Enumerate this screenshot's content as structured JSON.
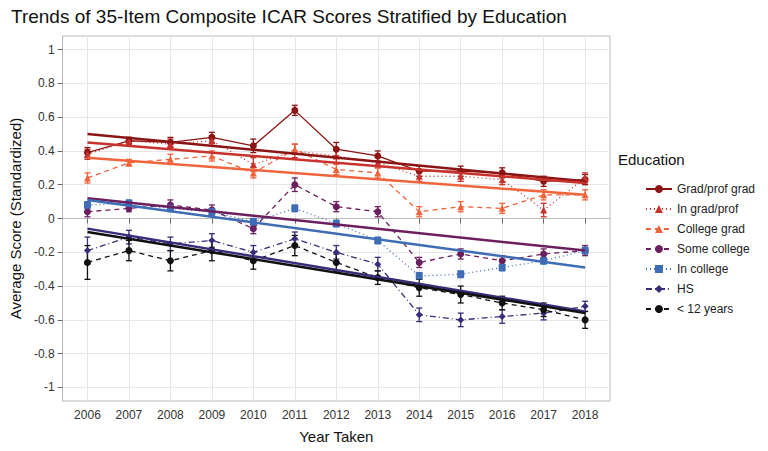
{
  "chart_data": {
    "type": "line",
    "title": "Trends of 35-Item Composite ICAR Scores Stratified by Education",
    "x_label": "Year Taken",
    "y_label": "Average Score (Standardized)",
    "legend_title": "Education",
    "legend": "right",
    "grid": true,
    "x": [
      2006,
      2007,
      2008,
      2009,
      2010,
      2011,
      2012,
      2013,
      2014,
      2015,
      2016,
      2017,
      2018
    ],
    "xlim": [
      2005.4,
      2018.6
    ],
    "xticks": [
      2006,
      2007,
      2008,
      2009,
      2010,
      2011,
      2012,
      2013,
      2014,
      2015,
      2016,
      2017,
      2018
    ],
    "ylim": [
      -1.08,
      1.08
    ],
    "yticks": [
      -1,
      -0.8,
      -0.6,
      -0.4,
      -0.2,
      0,
      0.2,
      0.4,
      0.6,
      0.8,
      1
    ],
    "series": [
      {
        "name": "Grad/prof grad",
        "color": "#8b1414",
        "line_style": "solid",
        "marker": "circle",
        "values": [
          0.39,
          0.46,
          0.45,
          0.48,
          0.43,
          0.64,
          0.41,
          0.37,
          0.28,
          0.28,
          0.27,
          0.22,
          0.23
        ],
        "errors": [
          0.03,
          0.02,
          0.03,
          0.03,
          0.04,
          0.03,
          0.04,
          0.03,
          0.03,
          0.03,
          0.03,
          0.03,
          0.03
        ],
        "trend": {
          "x": [
            2006,
            2018
          ],
          "values": [
            0.5,
            0.22
          ]
        }
      },
      {
        "name": "In grad/prof",
        "color": "#c8322d",
        "line_style": "dotted",
        "marker": "triangle",
        "values": [
          0.38,
          0.46,
          0.44,
          0.46,
          0.32,
          0.4,
          0.37,
          0.33,
          0.25,
          0.25,
          0.23,
          0.05,
          0.24
        ],
        "errors": [
          0.03,
          0.02,
          0.03,
          0.03,
          0.04,
          0.04,
          0.04,
          0.03,
          0.03,
          0.03,
          0.03,
          0.04,
          0.03
        ],
        "trend": {
          "x": [
            2006,
            2018
          ],
          "values": [
            0.45,
            0.21
          ]
        }
      },
      {
        "name": "College grad",
        "color": "#f0643c",
        "line_style": "dashed",
        "marker": "triangle",
        "values": [
          0.24,
          0.33,
          0.35,
          0.37,
          0.27,
          0.41,
          0.29,
          0.27,
          0.04,
          0.07,
          0.06,
          0.14,
          0.14
        ],
        "errors": [
          0.03,
          0.02,
          0.03,
          0.03,
          0.03,
          0.03,
          0.03,
          0.03,
          0.03,
          0.03,
          0.03,
          0.03,
          0.03
        ],
        "trend": {
          "x": [
            2006,
            2018
          ],
          "values": [
            0.36,
            0.14
          ]
        }
      },
      {
        "name": "Some college",
        "color": "#6b1f5e",
        "line_style": "dashed",
        "marker": "circle",
        "values": [
          0.04,
          0.06,
          0.08,
          0.05,
          -0.06,
          0.2,
          0.07,
          0.04,
          -0.26,
          -0.21,
          -0.25,
          -0.21,
          -0.19
        ],
        "errors": [
          0.03,
          0.02,
          0.03,
          0.03,
          0.03,
          0.04,
          0.03,
          0.03,
          0.03,
          0.03,
          0.03,
          0.03,
          0.03
        ],
        "trend": {
          "x": [
            2006,
            2018
          ],
          "values": [
            0.12,
            -0.19
          ]
        }
      },
      {
        "name": "In college",
        "color": "#3e6db5",
        "line_style": "dotted",
        "marker": "square",
        "values": [
          0.08,
          0.09,
          0.06,
          0.04,
          -0.02,
          0.06,
          -0.03,
          -0.13,
          -0.34,
          -0.33,
          -0.29,
          -0.25,
          -0.19
        ],
        "errors": [
          0.02,
          0.02,
          0.02,
          0.02,
          0.02,
          0.02,
          0.02,
          0.02,
          0.02,
          0.02,
          0.02,
          0.02,
          0.02
        ],
        "trend": {
          "x": [
            2006,
            2018
          ],
          "values": [
            0.11,
            -0.29
          ]
        }
      },
      {
        "name": "HS",
        "color": "#3a2c7a",
        "line_style": "dashdot",
        "marker": "diamond",
        "values": [
          -0.19,
          -0.11,
          -0.15,
          -0.13,
          -0.2,
          -0.12,
          -0.2,
          -0.27,
          -0.57,
          -0.6,
          -0.58,
          -0.56,
          -0.52
        ],
        "errors": [
          0.08,
          0.04,
          0.04,
          0.04,
          0.04,
          0.04,
          0.04,
          0.04,
          0.04,
          0.04,
          0.04,
          0.04,
          0.03
        ],
        "trend": {
          "x": [
            2006,
            2018
          ],
          "values": [
            -0.06,
            -0.55
          ]
        }
      },
      {
        "name": "< 12 years",
        "color": "#111111",
        "line_style": "dashed",
        "marker": "circle",
        "values": [
          -0.26,
          -0.19,
          -0.25,
          -0.19,
          -0.25,
          -0.16,
          -0.26,
          -0.35,
          -0.41,
          -0.45,
          -0.5,
          -0.54,
          -0.6
        ],
        "errors": [
          0.1,
          0.06,
          0.06,
          0.06,
          0.05,
          0.06,
          0.05,
          0.04,
          0.05,
          0.05,
          0.04,
          0.04,
          0.05
        ],
        "trend": {
          "x": [
            2006,
            2018
          ],
          "values": [
            -0.08,
            -0.56
          ]
        }
      }
    ]
  }
}
